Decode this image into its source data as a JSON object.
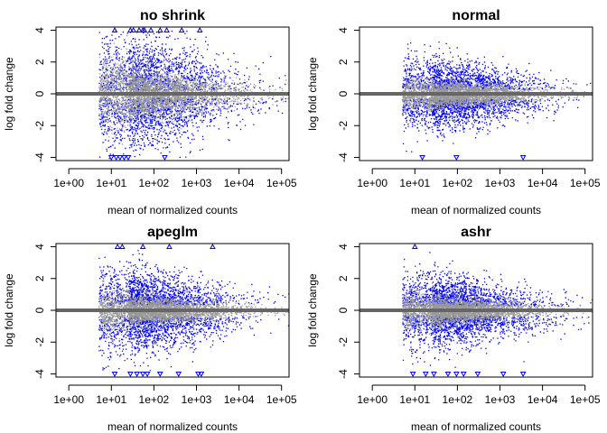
{
  "chart_data": [
    {
      "type": "scatter",
      "title": "no shrink",
      "xlabel": "mean of normalized counts",
      "ylabel": "log fold change",
      "xscale": "log",
      "xlim": [
        0.5,
        150000
      ],
      "ylim": [
        -4.2,
        4.2
      ],
      "xticks": [
        1,
        10,
        100,
        1000,
        10000,
        100000
      ],
      "xticklabels": [
        "1e+00",
        "1e+01",
        "1e+02",
        "1e+03",
        "1e+04",
        "1e+05"
      ],
      "yticks": [
        -4,
        -2,
        0,
        2,
        4
      ],
      "yticklabels": [
        "-4",
        "-2",
        "0",
        "2",
        "4"
      ],
      "series": [
        {
          "color": "#0000ff",
          "spread": 1.8,
          "minabs": 0.25
        },
        {
          "color": "#999999",
          "spread": 0.9,
          "minabs": 0.0
        }
      ],
      "outliers_up_x": [
        12,
        28,
        33,
        45,
        55,
        60,
        85,
        140,
        200,
        450,
        1200
      ],
      "outliers_down_x": [
        10,
        13,
        16,
        20,
        25,
        180
      ],
      "x_mode": 25,
      "x_min": 5,
      "x_max": 150000
    },
    {
      "type": "scatter",
      "title": "normal",
      "xlabel": "mean of normalized counts",
      "ylabel": "log fold change",
      "xscale": "log",
      "xlim": [
        0.5,
        150000
      ],
      "ylim": [
        -4.2,
        4.2
      ],
      "xticks": [
        1,
        10,
        100,
        1000,
        10000,
        100000
      ],
      "xticklabels": [
        "1e+00",
        "1e+01",
        "1e+02",
        "1e+03",
        "1e+04",
        "1e+05"
      ],
      "yticks": [
        -4,
        -2,
        0,
        2,
        4
      ],
      "yticklabels": [
        "-4",
        "-2",
        "0",
        "2",
        "4"
      ],
      "series": [
        {
          "color": "#0000ff",
          "spread": 1.0,
          "minabs": 0.3
        },
        {
          "color": "#999999",
          "spread": 0.45,
          "minabs": 0.0
        }
      ],
      "outliers_up_x": [],
      "outliers_down_x": [
        15,
        95,
        3500
      ],
      "x_mode": 25,
      "x_min": 5,
      "x_max": 150000
    },
    {
      "type": "scatter",
      "title": "apeglm",
      "xlabel": "mean of normalized counts",
      "ylabel": "log fold change",
      "xscale": "log",
      "xlim": [
        0.5,
        150000
      ],
      "ylim": [
        -4.2,
        4.2
      ],
      "xticks": [
        1,
        10,
        100,
        1000,
        10000,
        100000
      ],
      "xticklabels": [
        "1e+00",
        "1e+01",
        "1e+02",
        "1e+03",
        "1e+04",
        "1e+05"
      ],
      "yticks": [
        -4,
        -2,
        0,
        2,
        4
      ],
      "yticklabels": [
        "-4",
        "-2",
        "0",
        "2",
        "4"
      ],
      "series": [
        {
          "color": "#0000ff",
          "spread": 1.2,
          "minabs": 0.35
        },
        {
          "color": "#999999",
          "spread": 0.5,
          "minabs": 0.0
        }
      ],
      "outliers_up_x": [
        14,
        18,
        55,
        230,
        2400
      ],
      "outliers_down_x": [
        12,
        28,
        40,
        55,
        70,
        140,
        380,
        1100,
        1300
      ],
      "x_mode": 25,
      "x_min": 5,
      "x_max": 150000
    },
    {
      "type": "scatter",
      "title": "ashr",
      "xlabel": "mean of normalized counts",
      "ylabel": "log fold change",
      "xscale": "log",
      "xlim": [
        0.5,
        150000
      ],
      "ylim": [
        -4.2,
        4.2
      ],
      "xticks": [
        1,
        10,
        100,
        1000,
        10000,
        100000
      ],
      "xticklabels": [
        "1e+00",
        "1e+01",
        "1e+02",
        "1e+03",
        "1e+04",
        "1e+05"
      ],
      "yticks": [
        -4,
        -2,
        0,
        2,
        4
      ],
      "yticklabels": [
        "-4",
        "-2",
        "0",
        "2",
        "4"
      ],
      "series": [
        {
          "color": "#0000ff",
          "spread": 1.05,
          "minabs": 0.3
        },
        {
          "color": "#999999",
          "spread": 0.45,
          "minabs": 0.0
        }
      ],
      "outliers_up_x": [
        10
      ],
      "outliers_down_x": [
        9,
        18,
        28,
        60,
        95,
        140,
        300,
        1200,
        3500
      ],
      "x_mode": 25,
      "x_min": 5,
      "x_max": 150000
    }
  ],
  "style": {
    "zero_line_color": "#666666",
    "significant_color": "#0000ff",
    "background_color": "#999999",
    "outlier_color": "#0000ff"
  }
}
